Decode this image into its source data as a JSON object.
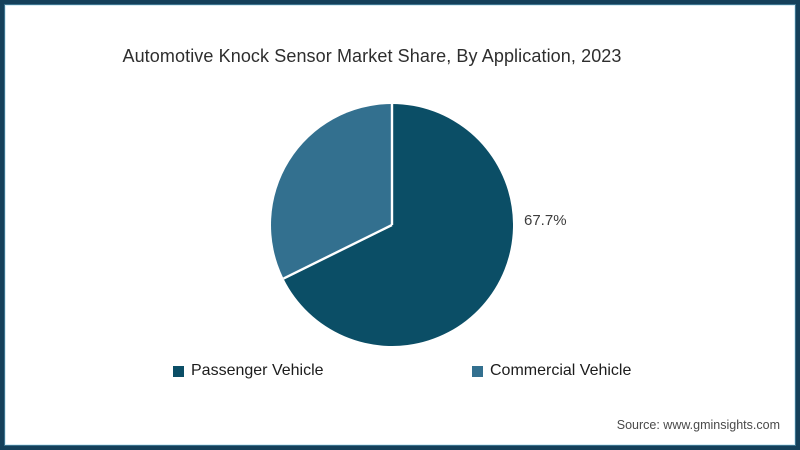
{
  "chart_data": {
    "type": "pie",
    "title": "Automotive Knock Sensor Market Share, By Application, 2023",
    "slices": [
      {
        "label": "Passenger Vehicle",
        "value": 67.7,
        "color": "#0b4e66"
      },
      {
        "label": "Commercial Vehicle",
        "value": 32.3,
        "color": "#33708f"
      }
    ],
    "data_label": "67.7%",
    "start_angle": 0,
    "direction": "clockwise",
    "separator_color": "#ffffff",
    "legend_position": "bottom"
  },
  "source": "Source: www.gminsights.com",
  "frame": {
    "border_color": "#14405a",
    "mid_line_color": "#3a718c",
    "light_line_color": "#d9edf4",
    "background": "#ffffff"
  }
}
